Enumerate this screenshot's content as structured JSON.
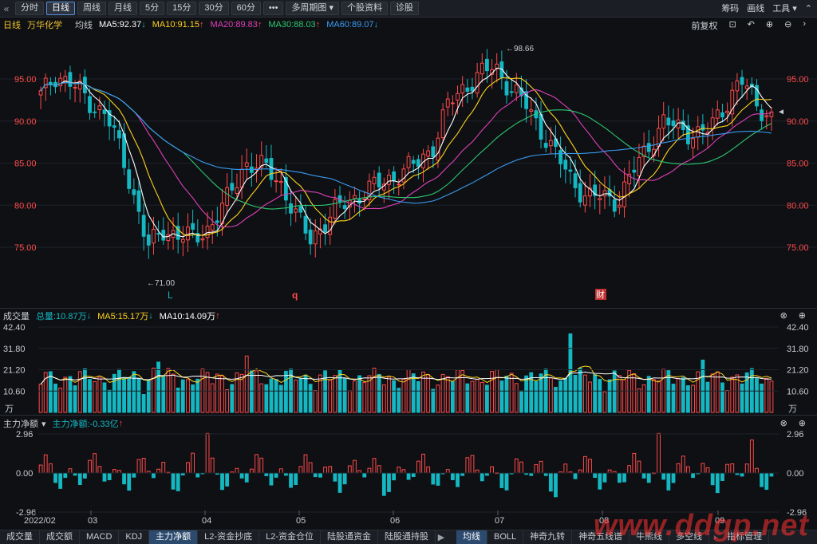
{
  "toolbar": {
    "back_icon": "«",
    "periods": [
      "分时",
      "日线",
      "周线",
      "月线",
      "5分",
      "15分",
      "30分",
      "60分"
    ],
    "active_period": 1,
    "more_label": "•••",
    "multi_period_label": "多周期图",
    "stock_info_label": "个股资料",
    "diagnose_label": "诊股",
    "right": {
      "chips_label": "筹码",
      "draw_label": "画线",
      "tools_label": "工具"
    }
  },
  "price_header": {
    "period_label": "日线",
    "stock_name": "万华化学",
    "avg_label": "均线",
    "ma5": "MA5:92.37",
    "ma10": "MA10:91.15",
    "ma20": "MA20:89.83",
    "ma30": "MA30:88.03",
    "ma60": "MA60:89.07",
    "adjust_label": "前复权"
  },
  "colors": {
    "up": "#ff4a4a",
    "down": "#15b8c2",
    "ma5": "#ffffff",
    "ma10": "#ffd21c",
    "ma20": "#e040b8",
    "ma30": "#2ec870",
    "ma60": "#3a9af0",
    "main_value": "#f0c030"
  },
  "price_axis": {
    "ticks": [
      "95.00",
      "90.00",
      "85.00",
      "80.00",
      "75.00"
    ]
  },
  "annotations": {
    "high": "98.66",
    "low": "71.00",
    "marker_l": "L",
    "marker_q": "q",
    "marker_cai": "财"
  },
  "volume_header": {
    "title": "成交量",
    "total": "总量:10.87万",
    "ma5": "MA5:15.17万",
    "ma10": "MA10:14.09万"
  },
  "volume_axis": {
    "ticks": [
      "42.40",
      "31.80",
      "21.20",
      "10.60"
    ],
    "unit": "万"
  },
  "main_header": {
    "title": "主力净额",
    "value": "主力净额:-0.33亿"
  },
  "main_axis": {
    "ticks": [
      "2.96",
      "0.00",
      "-2.96"
    ]
  },
  "x_axis": {
    "labels": [
      "2022/02",
      "03",
      "04",
      "05",
      "06",
      "07",
      "08",
      "09"
    ]
  },
  "bottom_tabs": {
    "left": [
      "成交量",
      "成交额",
      "MACD",
      "KDJ",
      "主力净额",
      "L2-资金抄底",
      "L2-资金仓位",
      "陆股通资金",
      "陆股通持股"
    ],
    "right": [
      "均线",
      "BOLL",
      "神奇九转",
      "神奇五线谱",
      "牛熊线",
      "多空线"
    ],
    "right_end": "指标管理",
    "active_left": 4,
    "active_right": 0
  },
  "watermark": "www.ddgp.net"
}
